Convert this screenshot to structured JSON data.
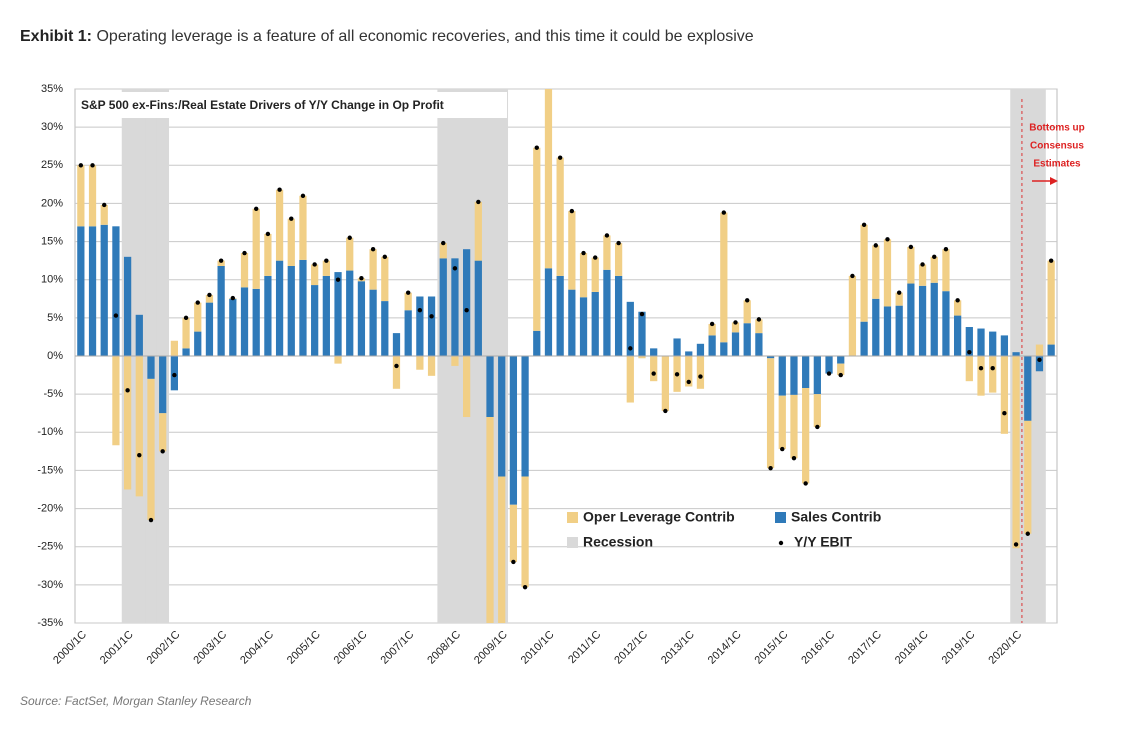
{
  "chart_data": {
    "type": "bar",
    "exhibit_label": "Exhibit 1:",
    "exhibit_text": "Operating leverage is a feature of all economic recoveries, and this time it could be explosive",
    "title": "S&P 500 ex-Fins:/Real Estate Drivers of Y/Y Change in Op Profit",
    "source": "Source: FactSet, Morgan Stanley Research",
    "annotation": [
      "Bottoms up",
      "Consensus",
      "Estimates"
    ],
    "categories": [
      "2000/1C",
      null,
      null,
      null,
      "2001/1C",
      null,
      null,
      null,
      "2002/1C",
      null,
      null,
      null,
      "2003/1C",
      null,
      null,
      null,
      "2004/1C",
      null,
      null,
      null,
      "2005/1C",
      null,
      null,
      null,
      "2006/1C",
      null,
      null,
      null,
      "2007/1C",
      null,
      null,
      null,
      "2008/1C",
      null,
      null,
      null,
      "2009/1C",
      null,
      null,
      null,
      "2010/1C",
      null,
      null,
      null,
      "2011/1C",
      null,
      null,
      null,
      "2012/1C",
      null,
      null,
      null,
      "2013/1C",
      null,
      null,
      null,
      "2014/1C",
      null,
      null,
      null,
      "2015/1C",
      null,
      null,
      null,
      "2016/1C",
      null,
      null,
      null,
      "2017/1C",
      null,
      null,
      null,
      "2018/1C",
      null,
      null,
      null,
      "2019/1C",
      null,
      null,
      null,
      "2020/1C",
      null,
      null,
      null
    ],
    "series": [
      {
        "name": "Oper Leverage Contrib",
        "color": "#f1cf86",
        "values": [
          8,
          8,
          2.6,
          -11.7,
          -17.5,
          -18.4,
          -18.5,
          -5,
          2,
          4,
          3.8,
          1,
          0.7,
          0.1,
          4.5,
          10.5,
          5.5,
          9.3,
          6.2,
          8.4,
          2.7,
          2,
          -1,
          4.3,
          0.4,
          5.3,
          5.8,
          -4.3,
          2.3,
          -1.8,
          -2.6,
          2,
          -1.3,
          -8,
          7.7,
          -28,
          -20,
          -7.5,
          -14.5,
          24,
          24,
          15.5,
          10.3,
          5.8,
          4.5,
          4.5,
          4.3,
          -6.1,
          -0.3,
          -3.3,
          -7.2,
          -4.7,
          -4,
          -4.3,
          1.5,
          17,
          1.3,
          3,
          1.8,
          -14.4,
          -7,
          -8.3,
          -12.5,
          -4.3,
          0,
          -1.5,
          10.5,
          12.7,
          7,
          8.8,
          1.7,
          4.8,
          2.8,
          3.4,
          5.5,
          2,
          -3.3,
          -5.2,
          -4.8,
          -10.2,
          -25.2,
          -14.8,
          1.5,
          11
        ]
      },
      {
        "name": "Sales Contrib",
        "color": "#2f7ab9",
        "values": [
          17,
          17,
          17.2,
          17,
          13,
          5.4,
          -3,
          -7.5,
          -4.5,
          1,
          3.2,
          7,
          11.8,
          7.5,
          9,
          8.8,
          10.5,
          12.5,
          11.8,
          12.6,
          9.3,
          10.5,
          11,
          11.2,
          9.8,
          8.7,
          7.2,
          3,
          6,
          7.8,
          7.8,
          12.8,
          12.8,
          14,
          12.5,
          -8,
          -15.8,
          -19.5,
          -15.8,
          3.3,
          11.5,
          10.5,
          8.7,
          7.7,
          8.4,
          11.3,
          10.5,
          7.1,
          5.8,
          1,
          0,
          2.3,
          0.6,
          1.6,
          2.7,
          1.8,
          3.1,
          4.3,
          3,
          -0.3,
          -5.2,
          -5.1,
          -4.2,
          -5,
          -2.3,
          -1,
          0,
          4.5,
          7.5,
          6.5,
          6.6,
          9.5,
          9.2,
          9.6,
          8.5,
          5.3,
          3.8,
          3.6,
          3.2,
          2.7,
          0.5,
          -8.5,
          -2,
          1.5
        ]
      },
      {
        "name": "Recession",
        "color": "#d9d9d9",
        "values": [
          false,
          false,
          false,
          false,
          true,
          true,
          true,
          true,
          false,
          false,
          false,
          false,
          false,
          false,
          false,
          false,
          false,
          false,
          false,
          false,
          false,
          false,
          false,
          false,
          false,
          false,
          false,
          false,
          false,
          false,
          false,
          true,
          true,
          true,
          true,
          true,
          true,
          false,
          false,
          false,
          false,
          false,
          false,
          false,
          false,
          false,
          false,
          false,
          false,
          false,
          false,
          false,
          false,
          false,
          false,
          false,
          false,
          false,
          false,
          false,
          false,
          false,
          false,
          false,
          false,
          false,
          false,
          false,
          false,
          false,
          false,
          false,
          false,
          false,
          false,
          false,
          false,
          false,
          false,
          false,
          true,
          true,
          true,
          false
        ]
      },
      {
        "name": "Y/Y EBIT",
        "color": "#000000",
        "values": [
          25,
          25,
          19.8,
          5.3,
          -4.5,
          -13,
          -21.5,
          -12.5,
          -2.5,
          5,
          7,
          8,
          12.5,
          7.6,
          13.5,
          19.3,
          16,
          21.8,
          18,
          21,
          12,
          12.5,
          10,
          15.5,
          10.2,
          14,
          13,
          -1.3,
          8.3,
          6,
          5.2,
          14.8,
          11.5,
          6,
          20.2,
          null,
          null,
          -27,
          -30.3,
          27.3,
          null,
          26,
          19,
          13.5,
          12.9,
          15.8,
          14.8,
          1,
          5.5,
          -2.3,
          -7.2,
          -2.4,
          -3.4,
          -2.7,
          4.2,
          18.8,
          4.4,
          7.3,
          4.8,
          -14.7,
          -12.2,
          -13.4,
          -16.7,
          -9.3,
          -2.3,
          -2.5,
          10.5,
          17.2,
          14.5,
          15.3,
          8.3,
          14.3,
          12,
          13,
          14,
          7.3,
          0.5,
          -1.6,
          -1.6,
          -7.5,
          -24.7,
          -23.3,
          -0.5,
          12.5
        ]
      }
    ],
    "ylim": [
      -35,
      35
    ],
    "yticks": [
      {
        "value": -35,
        "label": "-35%"
      },
      {
        "value": -30,
        "label": "-30%"
      },
      {
        "value": -25,
        "label": "-25%"
      },
      {
        "value": -20,
        "label": "-20%"
      },
      {
        "value": -15,
        "label": "-15%"
      },
      {
        "value": -10,
        "label": "-10%"
      },
      {
        "value": -5,
        "label": "-5%"
      },
      {
        "value": 0,
        "label": "0%"
      },
      {
        "value": 5,
        "label": "5%"
      },
      {
        "value": 10,
        "label": "10%"
      },
      {
        "value": 15,
        "label": "15%"
      },
      {
        "value": 20,
        "label": "20%"
      },
      {
        "value": 25,
        "label": "25%"
      },
      {
        "value": 30,
        "label": "30%"
      },
      {
        "value": 35,
        "label": "35%"
      }
    ],
    "grid": true
  }
}
